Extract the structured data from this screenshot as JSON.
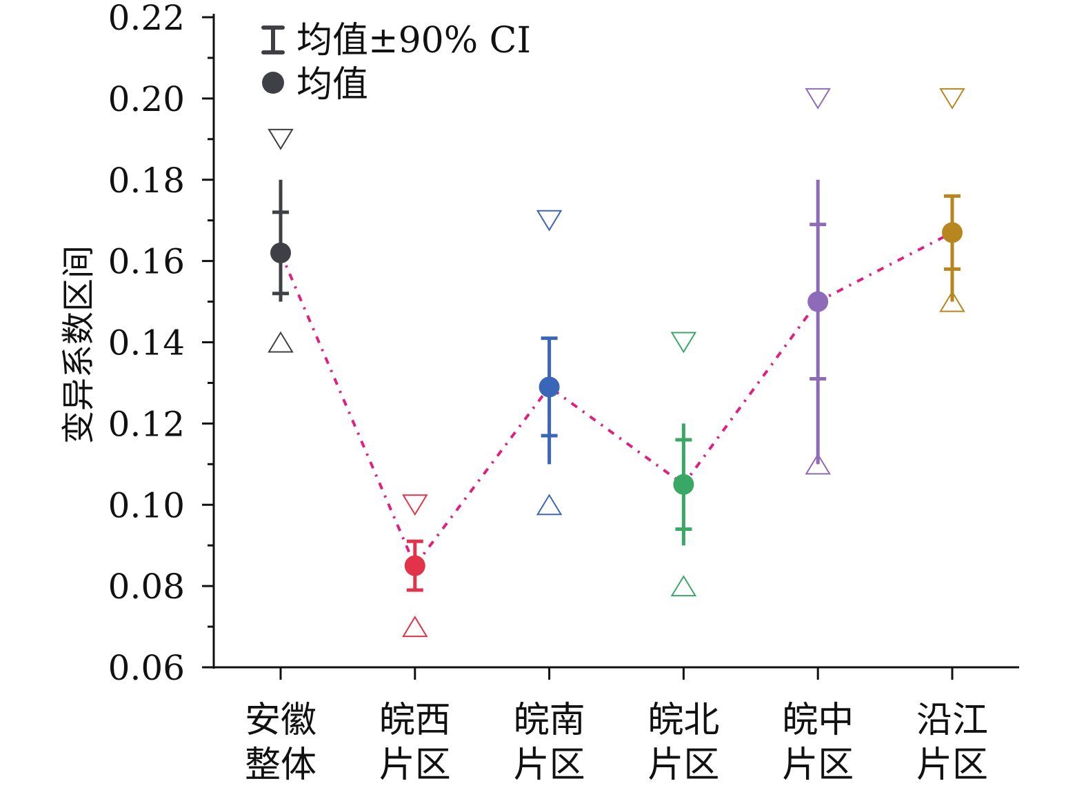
{
  "chart_data": {
    "type": "scatter",
    "title": "",
    "xlabel": "",
    "ylabel": "变异系数区间",
    "ylim": [
      0.06,
      0.22
    ],
    "yticks": [
      "0.06",
      "0.08",
      "0.10",
      "0.12",
      "0.14",
      "0.16",
      "0.18",
      "0.20",
      "0.22"
    ],
    "legend": {
      "placement": "top-left",
      "entries": [
        {
          "symbol": "errorbar",
          "label": "均值±90% CI"
        },
        {
          "symbol": "dot",
          "label": "均值"
        }
      ]
    },
    "trend_line_color": "#e0207f",
    "categories": [
      {
        "line1": "安徽",
        "line2": "整体",
        "color": "#3f3f46",
        "mean": 0.162,
        "whisker": [
          0.15,
          0.18
        ],
        "ci": [
          0.152,
          0.172
        ],
        "caps": false,
        "tri_up": 0.14,
        "tri_down": 0.19
      },
      {
        "line1": "皖西",
        "line2": "片区",
        "color": "#e3334a",
        "mean": 0.085,
        "whisker": [
          0.079,
          0.091
        ],
        "ci": [
          0.079,
          0.091
        ],
        "caps": true,
        "tri_up": 0.07,
        "tri_down": 0.1
      },
      {
        "line1": "皖南",
        "line2": "片区",
        "color": "#3a66b8",
        "mean": 0.129,
        "whisker": [
          0.11,
          0.141
        ],
        "ci": [
          0.117,
          0.141
        ],
        "caps": true,
        "tri_up": 0.1,
        "tri_down": 0.17
      },
      {
        "line1": "皖北",
        "line2": "片区",
        "color": "#3aa865",
        "mean": 0.105,
        "whisker": [
          0.09,
          0.12
        ],
        "ci": [
          0.094,
          0.116
        ],
        "caps": false,
        "tri_up": 0.08,
        "tri_down": 0.14
      },
      {
        "line1": "皖中",
        "line2": "片区",
        "color": "#8e6bb8",
        "mean": 0.15,
        "whisker": [
          0.11,
          0.18
        ],
        "ci": [
          0.131,
          0.169
        ],
        "caps": false,
        "tri_up": 0.11,
        "tri_down": 0.2
      },
      {
        "line1": "沿江",
        "line2": "片区",
        "color": "#b8861e",
        "mean": 0.167,
        "whisker": [
          0.15,
          0.176
        ],
        "ci": [
          0.158,
          0.176
        ],
        "caps": true,
        "tri_up": 0.15,
        "tri_down": 0.2
      }
    ]
  }
}
